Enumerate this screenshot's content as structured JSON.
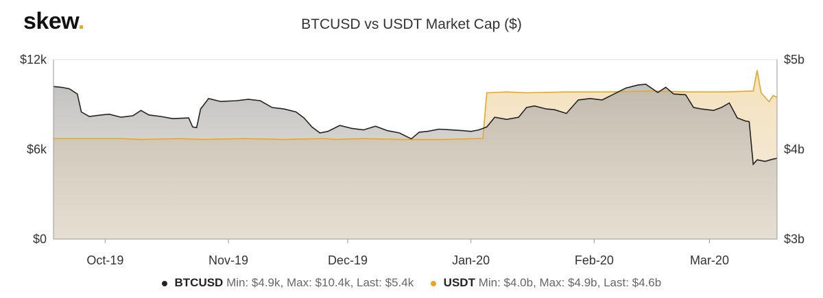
{
  "brand": {
    "logo_text": "skew",
    "logo_dot": "."
  },
  "chart_data": {
    "type": "area",
    "title": "BTCUSD vs USDT Market Cap ($)",
    "x_tick_labels": [
      "Oct-19",
      "Nov-19",
      "Dec-19",
      "Jan-20",
      "Feb-20",
      "Mar-20"
    ],
    "x_range": [
      "2019-09-18",
      "2020-03-18"
    ],
    "y_left": {
      "ticks": [
        "$0",
        "$6k",
        "$12k"
      ],
      "range": [
        0,
        12000
      ],
      "unit": "$"
    },
    "y_right": {
      "ticks": [
        "$3b",
        "$4b",
        "$5b"
      ],
      "range": [
        3.0,
        5.0
      ],
      "unit": "$b"
    },
    "grid": true,
    "legend_position": "bottom-center",
    "series": [
      {
        "name": "BTCUSD",
        "axis": "left",
        "color": "#222222",
        "fill": "#b9b9b9",
        "min": "$4.9k",
        "max": "$10.4k",
        "last": "$5.4k",
        "points": [
          [
            "2019-09-18",
            10200
          ],
          [
            "2019-09-20",
            10150
          ],
          [
            "2019-09-22",
            10050
          ],
          [
            "2019-09-24",
            9700
          ],
          [
            "2019-09-25",
            8500
          ],
          [
            "2019-09-27",
            8200
          ],
          [
            "2019-09-30",
            8300
          ],
          [
            "2019-10-02",
            8350
          ],
          [
            "2019-10-05",
            8150
          ],
          [
            "2019-10-08",
            8250
          ],
          [
            "2019-10-10",
            8600
          ],
          [
            "2019-10-12",
            8300
          ],
          [
            "2019-10-15",
            8200
          ],
          [
            "2019-10-18",
            8050
          ],
          [
            "2019-10-22",
            8100
          ],
          [
            "2019-10-23",
            7500
          ],
          [
            "2019-10-24",
            7450
          ],
          [
            "2019-10-25",
            8700
          ],
          [
            "2019-10-27",
            9400
          ],
          [
            "2019-10-30",
            9200
          ],
          [
            "2019-11-03",
            9250
          ],
          [
            "2019-11-06",
            9350
          ],
          [
            "2019-11-09",
            9250
          ],
          [
            "2019-11-12",
            8800
          ],
          [
            "2019-11-15",
            8700
          ],
          [
            "2019-11-18",
            8500
          ],
          [
            "2019-11-20",
            8100
          ],
          [
            "2019-11-22",
            7500
          ],
          [
            "2019-11-24",
            7100
          ],
          [
            "2019-11-26",
            7200
          ],
          [
            "2019-11-29",
            7600
          ],
          [
            "2019-12-02",
            7400
          ],
          [
            "2019-12-05",
            7300
          ],
          [
            "2019-12-08",
            7550
          ],
          [
            "2019-12-11",
            7250
          ],
          [
            "2019-12-14",
            7100
          ],
          [
            "2019-12-17",
            6700
          ],
          [
            "2019-12-19",
            7150
          ],
          [
            "2019-12-21",
            7200
          ],
          [
            "2019-12-24",
            7350
          ],
          [
            "2019-12-27",
            7300
          ],
          [
            "2019-12-30",
            7250
          ],
          [
            "2020-01-01",
            7200
          ],
          [
            "2020-01-03",
            7300
          ],
          [
            "2020-01-05",
            7500
          ],
          [
            "2020-01-07",
            8150
          ],
          [
            "2020-01-10",
            8000
          ],
          [
            "2020-01-13",
            8150
          ],
          [
            "2020-01-15",
            8800
          ],
          [
            "2020-01-17",
            8900
          ],
          [
            "2020-01-20",
            8700
          ],
          [
            "2020-01-22",
            8650
          ],
          [
            "2020-01-25",
            8400
          ],
          [
            "2020-01-28",
            9300
          ],
          [
            "2020-01-31",
            9400
          ],
          [
            "2020-02-03",
            9300
          ],
          [
            "2020-02-06",
            9700
          ],
          [
            "2020-02-09",
            10100
          ],
          [
            "2020-02-12",
            10300
          ],
          [
            "2020-02-14",
            10350
          ],
          [
            "2020-02-17",
            9800
          ],
          [
            "2020-02-19",
            10150
          ],
          [
            "2020-02-21",
            9700
          ],
          [
            "2020-02-24",
            9650
          ],
          [
            "2020-02-26",
            8800
          ],
          [
            "2020-02-28",
            8700
          ],
          [
            "2020-03-02",
            8600
          ],
          [
            "2020-03-04",
            8800
          ],
          [
            "2020-03-06",
            9100
          ],
          [
            "2020-03-08",
            8100
          ],
          [
            "2020-03-10",
            7900
          ],
          [
            "2020-03-11",
            7850
          ],
          [
            "2020-03-12",
            5000
          ],
          [
            "2020-03-13",
            5300
          ],
          [
            "2020-03-15",
            5200
          ],
          [
            "2020-03-17",
            5350
          ],
          [
            "2020-03-18",
            5400
          ]
        ]
      },
      {
        "name": "USDT",
        "axis": "right",
        "color": "#e8a628",
        "fill": "#f4e3c4",
        "min": "$4.0b",
        "max": "$4.9b",
        "last": "$4.6b",
        "points": [
          [
            "2019-09-18",
            4.12
          ],
          [
            "2019-09-25",
            4.12
          ],
          [
            "2019-10-05",
            4.12
          ],
          [
            "2019-10-10",
            4.11
          ],
          [
            "2019-10-20",
            4.12
          ],
          [
            "2019-10-26",
            4.11
          ],
          [
            "2019-11-05",
            4.12
          ],
          [
            "2019-11-15",
            4.11
          ],
          [
            "2019-11-25",
            4.12
          ],
          [
            "2019-11-28",
            4.11
          ],
          [
            "2019-12-05",
            4.12
          ],
          [
            "2019-12-15",
            4.11
          ],
          [
            "2019-12-25",
            4.11
          ],
          [
            "2020-01-03",
            4.12
          ],
          [
            "2020-01-04",
            4.12
          ],
          [
            "2020-01-05",
            4.63
          ],
          [
            "2020-01-10",
            4.64
          ],
          [
            "2020-01-15",
            4.63
          ],
          [
            "2020-01-25",
            4.64
          ],
          [
            "2020-02-05",
            4.64
          ],
          [
            "2020-02-15",
            4.65
          ],
          [
            "2020-02-25",
            4.64
          ],
          [
            "2020-03-05",
            4.64
          ],
          [
            "2020-03-12",
            4.65
          ],
          [
            "2020-03-13",
            4.88
          ],
          [
            "2020-03-14",
            4.63
          ],
          [
            "2020-03-16",
            4.53
          ],
          [
            "2020-03-17",
            4.6
          ],
          [
            "2020-03-18",
            4.58
          ]
        ]
      }
    ]
  }
}
